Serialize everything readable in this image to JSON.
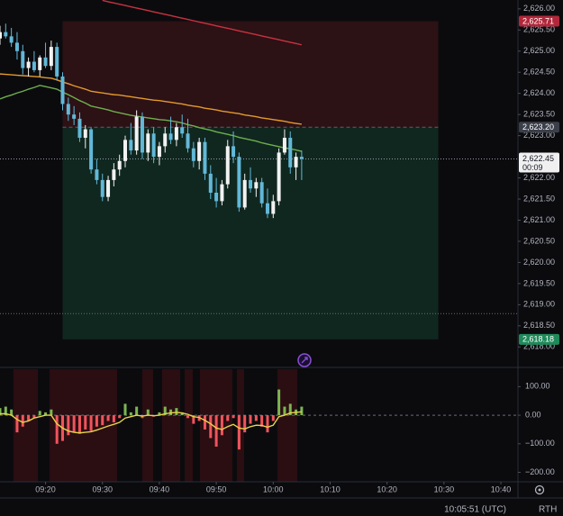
{
  "chart_data": [
    {
      "type": "candlestick",
      "x": [
        "09:12",
        "09:13",
        "09:14",
        "09:15",
        "09:16",
        "09:17",
        "09:18",
        "09:19",
        "09:20",
        "09:21",
        "09:22",
        "09:23",
        "09:24",
        "09:25",
        "09:26",
        "09:27",
        "09:28",
        "09:29",
        "09:30",
        "09:31",
        "09:32",
        "09:33",
        "09:34",
        "09:35",
        "09:36",
        "09:37",
        "09:38",
        "09:39",
        "09:40",
        "09:41",
        "09:42",
        "09:43",
        "09:44",
        "09:45",
        "09:46",
        "09:47",
        "09:48",
        "09:49",
        "09:50",
        "09:51",
        "09:52",
        "09:53",
        "09:54",
        "09:55",
        "09:56",
        "09:57",
        "09:58",
        "09:59",
        "10:00",
        "10:01",
        "10:02",
        "10:03",
        "10:04",
        "10:05"
      ],
      "open": [
        2625.3,
        2625.45,
        2625.35,
        2625.2,
        2625.0,
        2624.6,
        2624.75,
        2624.55,
        2624.85,
        2624.65,
        2625.1,
        2624.4,
        2623.75,
        2623.5,
        2623.4,
        2622.95,
        2623.15,
        2622.2,
        2621.95,
        2621.55,
        2621.95,
        2622.2,
        2622.4,
        2622.9,
        2622.65,
        2623.45,
        2622.6,
        2623.05,
        2622.5,
        2622.75,
        2623.05,
        2622.9,
        2623.2,
        2623.05,
        2622.7,
        2622.4,
        2622.85,
        2622.1,
        2621.65,
        2621.45,
        2621.85,
        2622.75,
        2622.5,
        2621.3,
        2621.95,
        2621.75,
        2621.9,
        2621.4,
        2621.15,
        2621.45,
        2622.6,
        2622.95,
        2622.25,
        2622.5
      ],
      "high": [
        2625.6,
        2625.65,
        2625.55,
        2625.45,
        2625.15,
        2624.85,
        2625.0,
        2624.9,
        2625.2,
        2625.25,
        2625.2,
        2624.5,
        2623.9,
        2623.7,
        2623.55,
        2623.25,
        2623.2,
        2622.45,
        2622.1,
        2622.05,
        2622.35,
        2622.55,
        2623.0,
        2623.3,
        2623.6,
        2623.55,
        2623.15,
        2623.2,
        2622.85,
        2623.2,
        2623.45,
        2623.3,
        2623.5,
        2623.4,
        2622.85,
        2622.95,
        2622.95,
        2622.3,
        2622.0,
        2621.95,
        2622.9,
        2623.1,
        2622.6,
        2622.1,
        2622.25,
        2622.0,
        2622.0,
        2621.75,
        2621.6,
        2622.7,
        2623.15,
        2623.1,
        2622.6,
        2622.65
      ],
      "low": [
        2625.15,
        2625.3,
        2625.1,
        2624.8,
        2624.45,
        2624.4,
        2624.5,
        2624.4,
        2624.6,
        2624.55,
        2624.3,
        2623.6,
        2623.35,
        2623.25,
        2622.85,
        2622.7,
        2622.1,
        2621.85,
        2621.45,
        2621.45,
        2621.8,
        2622.05,
        2622.25,
        2622.55,
        2622.55,
        2622.45,
        2622.4,
        2622.35,
        2622.3,
        2622.6,
        2622.8,
        2622.75,
        2622.95,
        2622.6,
        2622.25,
        2622.2,
        2621.95,
        2621.5,
        2621.3,
        2621.35,
        2621.75,
        2622.35,
        2621.2,
        2621.25,
        2621.65,
        2621.55,
        2621.3,
        2621.05,
        2621.05,
        2621.35,
        2622.55,
        2622.1,
        2621.95,
        2621.95
      ],
      "close": [
        2625.45,
        2625.35,
        2625.2,
        2625.0,
        2624.6,
        2624.75,
        2624.55,
        2624.85,
        2624.65,
        2625.1,
        2624.4,
        2623.75,
        2623.5,
        2623.4,
        2622.95,
        2623.15,
        2622.2,
        2621.95,
        2621.55,
        2621.95,
        2622.2,
        2622.4,
        2622.9,
        2622.65,
        2623.45,
        2622.6,
        2623.05,
        2622.5,
        2622.75,
        2623.05,
        2622.9,
        2623.2,
        2623.05,
        2622.7,
        2622.4,
        2622.85,
        2622.1,
        2621.65,
        2621.45,
        2621.85,
        2622.75,
        2622.5,
        2621.3,
        2621.95,
        2621.75,
        2621.9,
        2621.4,
        2621.15,
        2621.45,
        2622.6,
        2622.95,
        2622.25,
        2622.5,
        2622.45
      ],
      "up_color": "#f2f2f2",
      "down_color": "#62b8d8",
      "lines": [
        {
          "color": "#c8323f",
          "values": [
            null,
            null,
            null,
            null,
            null,
            null,
            null,
            null,
            null,
            null,
            null,
            null,
            null,
            null,
            null,
            null,
            null,
            null,
            2626.2,
            2626.17,
            2626.14,
            2626.11,
            2626.08,
            2626.05,
            2626.02,
            2625.99,
            2625.96,
            2625.93,
            2625.9,
            2625.87,
            2625.84,
            2625.81,
            2625.78,
            2625.75,
            2625.72,
            2625.69,
            2625.66,
            2625.63,
            2625.6,
            2625.57,
            2625.54,
            2625.51,
            2625.48,
            2625.45,
            2625.42,
            2625.39,
            2625.36,
            2625.33,
            2625.3,
            2625.27,
            2625.24,
            2625.21,
            2625.18,
            2625.15
          ]
        },
        {
          "color": "#e39a2c",
          "values": [
            2624.46,
            2624.45,
            2624.44,
            2624.43,
            2624.42,
            2624.41,
            2624.4,
            2624.39,
            2624.37,
            2624.36,
            2624.32,
            2624.27,
            2624.23,
            2624.18,
            2624.14,
            2624.1,
            2624.05,
            2624.03,
            2624.01,
            2623.99,
            2623.97,
            2623.96,
            2623.94,
            2623.92,
            2623.9,
            2623.88,
            2623.86,
            2623.84,
            2623.83,
            2623.81,
            2623.79,
            2623.77,
            2623.75,
            2623.72,
            2623.7,
            2623.68,
            2623.65,
            2623.63,
            2623.61,
            2623.58,
            2623.56,
            2623.54,
            2623.52,
            2623.49,
            2623.47,
            2623.45,
            2623.42,
            2623.4,
            2623.38,
            2623.36,
            2623.34,
            2623.31,
            2623.29,
            2623.27
          ]
        },
        {
          "color": "#6fae4e",
          "values": [
            2623.87,
            2623.92,
            2623.96,
            2624.01,
            2624.05,
            2624.1,
            2624.14,
            2624.19,
            2624.16,
            2624.13,
            2624.1,
            2624.03,
            2623.97,
            2623.9,
            2623.83,
            2623.77,
            2623.7,
            2623.67,
            2623.64,
            2623.61,
            2623.57,
            2623.54,
            2623.51,
            2623.48,
            2623.46,
            2623.44,
            2623.42,
            2623.4,
            2623.38,
            2623.37,
            2623.35,
            2623.33,
            2623.3,
            2623.26,
            2623.23,
            2623.19,
            2623.16,
            2623.13,
            2623.09,
            2623.06,
            2623.03,
            2623.0,
            2622.96,
            2622.93,
            2622.9,
            2622.87,
            2622.83,
            2622.8,
            2622.77,
            2622.74,
            2622.71,
            2622.69,
            2622.66,
            2622.63
          ]
        }
      ],
      "xlim": [
        "09:12",
        "10:43"
      ],
      "ylim": [
        2617.58,
        2626.21
      ],
      "yticks": [
        {
          "value": 2626.0,
          "label": "2,626.00"
        },
        {
          "value": 2625.5,
          "label": "2,625.50"
        },
        {
          "value": 2625.0,
          "label": "2,625.00"
        },
        {
          "value": 2624.5,
          "label": "2,624.50"
        },
        {
          "value": 2624.0,
          "label": "2,624.00"
        },
        {
          "value": 2623.5,
          "label": "2,623.50"
        },
        {
          "value": 2623.0,
          "label": "2,623.00"
        },
        {
          "value": 2622.0,
          "label": "2,622.00"
        },
        {
          "value": 2621.5,
          "label": "2,621.50"
        },
        {
          "value": 2621.0,
          "label": "2,621.00"
        },
        {
          "value": 2620.5,
          "label": "2,620.50"
        },
        {
          "value": 2620.0,
          "label": "2,620.00"
        },
        {
          "value": 2619.5,
          "label": "2,619.50"
        },
        {
          "value": 2619.0,
          "label": "2,619.00"
        },
        {
          "value": 2618.5,
          "label": "2,618.50"
        },
        {
          "value": 2618.0,
          "label": "2,618.00"
        }
      ],
      "position": {
        "start": "09:23",
        "end": "10:29",
        "stop": {
          "value": 2625.71,
          "label": "2,625.71",
          "color": "#b2283b"
        },
        "entry": {
          "value": 2623.2,
          "label": "2,623.20",
          "color": "#3b3f4a"
        },
        "target": {
          "value": 2618.18,
          "label": "2,618.18",
          "color": "#1f8a5a"
        },
        "stop_fill": "#2c1115",
        "target_fill": "#10271f"
      },
      "last_price": {
        "value": 2622.45,
        "label": "2,622.45",
        "countdown": "00:09"
      },
      "hlines": [
        2618.79
      ]
    },
    {
      "type": "bar",
      "x": [
        "09:12",
        "09:13",
        "09:14",
        "09:15",
        "09:16",
        "09:17",
        "09:18",
        "09:19",
        "09:20",
        "09:21",
        "09:22",
        "09:23",
        "09:24",
        "09:25",
        "09:26",
        "09:27",
        "09:28",
        "09:29",
        "09:30",
        "09:31",
        "09:32",
        "09:33",
        "09:34",
        "09:35",
        "09:36",
        "09:37",
        "09:38",
        "09:39",
        "09:40",
        "09:41",
        "09:42",
        "09:43",
        "09:44",
        "09:45",
        "09:46",
        "09:47",
        "09:48",
        "09:49",
        "09:50",
        "09:51",
        "09:52",
        "09:53",
        "09:54",
        "09:55",
        "09:56",
        "09:57",
        "09:58",
        "09:59",
        "10:00",
        "10:01",
        "10:02",
        "10:03",
        "10:04",
        "10:05"
      ],
      "values": [
        25,
        30,
        20,
        -60,
        -40,
        -20,
        -10,
        15,
        10,
        20,
        -100,
        -90,
        -70,
        -60,
        -65,
        -50,
        -55,
        -40,
        -35,
        -20,
        -25,
        -10,
        40,
        10,
        30,
        -10,
        20,
        -5,
        10,
        30,
        20,
        25,
        10,
        -10,
        -30,
        -20,
        -50,
        -80,
        -110,
        -70,
        -20,
        -10,
        -120,
        -60,
        -30,
        -20,
        -40,
        -60,
        -20,
        90,
        30,
        40,
        20,
        30
      ],
      "pos_color": "#7db552",
      "neg_color": "#f0545c",
      "line": {
        "color": "#e6d34a",
        "values": [
          5,
          5,
          0,
          -15,
          -25,
          -20,
          -10,
          -5,
          0,
          0,
          -30,
          -45,
          -55,
          -60,
          -62,
          -60,
          -58,
          -52,
          -45,
          -38,
          -32,
          -25,
          -10,
          -5,
          0,
          -3,
          0,
          -2,
          0,
          5,
          8,
          10,
          8,
          3,
          -5,
          -8,
          -18,
          -30,
          -45,
          -50,
          -40,
          -32,
          -45,
          -48,
          -40,
          -35,
          -36,
          -42,
          -35,
          -5,
          0,
          8,
          10,
          12
        ]
      },
      "xlim": [
        "09:12",
        "10:43"
      ],
      "ylim": [
        -233,
        161
      ],
      "yticks": [
        {
          "value": 100,
          "label": "100.00"
        },
        {
          "value": 0,
          "label": "0.00"
        },
        {
          "value": -100,
          "label": "−100.00"
        },
        {
          "value": -200,
          "label": "−200.00"
        }
      ],
      "xticks": [
        "09:20",
        "09:30",
        "09:40",
        "09:50",
        "10:00",
        "10:10",
        "10:20",
        "10:30",
        "10:40"
      ]
    }
  ],
  "status": {
    "clock": "10:05:51 (UTC)",
    "session": "RTH"
  }
}
